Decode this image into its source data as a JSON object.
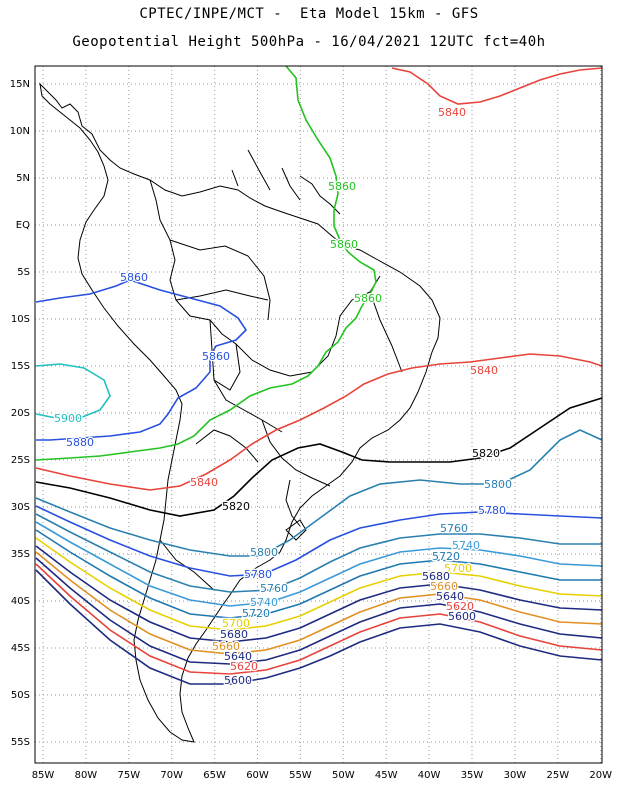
{
  "title_line1": "CPTEC/INPE/MCT -  Eta Model 15km - GFS",
  "title_line2": "Geopotential Height 500hPa - 16/04/2021 12UTC fct=40h",
  "lat_labels": [
    "15N",
    "10N",
    "5N",
    "EQ",
    "5S",
    "10S",
    "15S",
    "20S",
    "25S",
    "30S",
    "35S",
    "40S",
    "45S",
    "50S",
    "55S"
  ],
  "lon_labels": [
    "85W",
    "80W",
    "75W",
    "70W",
    "65W",
    "60W",
    "55W",
    "50W",
    "45W",
    "40W",
    "35W",
    "30W",
    "25W",
    "20W"
  ],
  "contour_labels": [
    {
      "text": "5840",
      "color": "#e8433a"
    },
    {
      "text": "5860",
      "color": "#22c322"
    },
    {
      "text": "5860",
      "color": "#22c322"
    },
    {
      "text": "5860",
      "color": "#22c322"
    },
    {
      "text": "5860",
      "color": "#2850e0"
    },
    {
      "text": "5860",
      "color": "#2850e0"
    },
    {
      "text": "5900",
      "color": "#1ec0c0"
    },
    {
      "text": "5880",
      "color": "#2850e0"
    },
    {
      "text": "5840",
      "color": "#e8433a"
    },
    {
      "text": "5840",
      "color": "#e8433a"
    },
    {
      "text": "5820",
      "color": "#000000"
    },
    {
      "text": "5820",
      "color": "#000000"
    },
    {
      "text": "5800",
      "color": "#2a80b0"
    },
    {
      "text": "5800",
      "color": "#2a80b0"
    },
    {
      "text": "5780",
      "color": "#2850e0"
    },
    {
      "text": "5780",
      "color": "#2850e0"
    },
    {
      "text": "5760",
      "color": "#2a80b0"
    },
    {
      "text": "5760",
      "color": "#2a80b0"
    },
    {
      "text": "5740",
      "color": "#3a9ad8"
    },
    {
      "text": "5740",
      "color": "#3a9ad8"
    },
    {
      "text": "5720",
      "color": "#1e78b0"
    },
    {
      "text": "5720",
      "color": "#1e78b0"
    },
    {
      "text": "5700",
      "color": "#e8d000"
    },
    {
      "text": "5700",
      "color": "#e8d000"
    },
    {
      "text": "5680",
      "color": "#1e2a80"
    },
    {
      "text": "5680",
      "color": "#1e2a80"
    },
    {
      "text": "5660",
      "color": "#e09020"
    },
    {
      "text": "5660",
      "color": "#e09020"
    },
    {
      "text": "5640",
      "color": "#1e2a80"
    },
    {
      "text": "5640",
      "color": "#1e2a80"
    },
    {
      "text": "5620",
      "color": "#e8433a"
    },
    {
      "text": "5620",
      "color": "#e8433a"
    },
    {
      "text": "5600",
      "color": "#1e2a80"
    },
    {
      "text": "5600",
      "color": "#1e2a80"
    }
  ]
}
